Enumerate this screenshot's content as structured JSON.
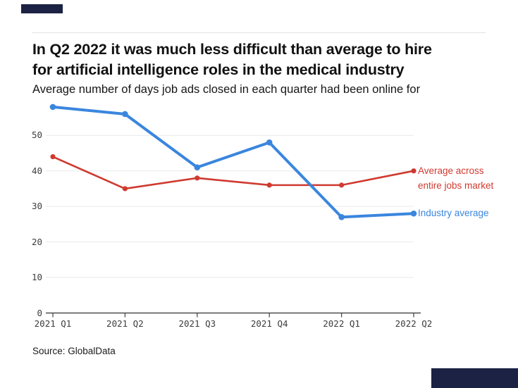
{
  "header": {
    "title_line1": "In Q2 2022 it was much less difficult than average to hire",
    "title_line2": "for artificial intelligence roles in the medical industry",
    "subtitle": "Average number of days job ads closed in each quarter had been online for"
  },
  "chart_data": {
    "type": "line",
    "title": "In Q2 2022 it was much less difficult than average to hire for artificial intelligence roles in the medical industry",
    "subtitle": "Average number of days job ads closed in each quarter had been online for",
    "categories": [
      "2021 Q1",
      "2021 Q2",
      "2021 Q3",
      "2021 Q4",
      "2022 Q1",
      "2022 Q2"
    ],
    "series": [
      {
        "name": "Average across entire jobs market",
        "color": "#cf3a30",
        "values": [
          44,
          35,
          38,
          36,
          36,
          40
        ]
      },
      {
        "name": "Industry average",
        "color": "#3a86de",
        "values": [
          58,
          56,
          41,
          48,
          27,
          28
        ]
      }
    ],
    "yticks": [
      0,
      10,
      20,
      30,
      40,
      50
    ],
    "ylim": [
      0,
      59
    ],
    "xlabel": "",
    "ylabel": "",
    "grid": "horizontal",
    "legend_position": "right-of-last-point"
  },
  "legend": {
    "market_line1": "Average across",
    "market_line2": "entire jobs market",
    "industry": "Industry average"
  },
  "footer": {
    "source": "Source: GlobalData"
  },
  "colors": {
    "industry_blue": "#3a86de",
    "market_red": "#cf3a30",
    "corner_navy": "#1b2244",
    "gridline": "#e9e9e9",
    "axis": "#4d4d4d"
  }
}
